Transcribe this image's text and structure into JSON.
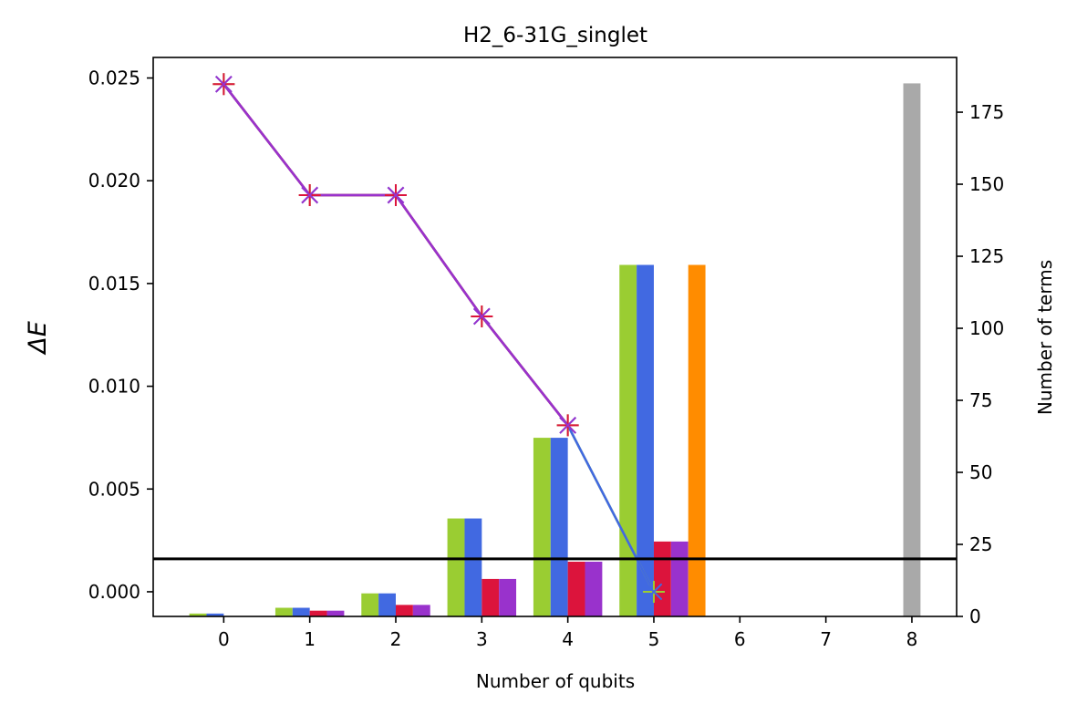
{
  "chart_data": {
    "type": "bar",
    "title": "H2_6-31G_singlet",
    "xlabel": "Number of qubits",
    "ylabel": "ΔE",
    "y2label": "Number of terms",
    "x_ticks": [
      "0",
      "1",
      "2",
      "3",
      "4",
      "5",
      "6",
      "7",
      "8"
    ],
    "ylim": [
      -0.0012,
      0.026
    ],
    "y_ticks": [
      "0.000",
      "0.005",
      "0.010",
      "0.015",
      "0.020",
      "0.025"
    ],
    "y_tick_values": [
      0,
      0.005,
      0.01,
      0.015,
      0.02,
      0.025
    ],
    "y2lim": [
      0,
      194
    ],
    "y2_ticks": [
      "0",
      "25",
      "50",
      "75",
      "100",
      "125",
      "150",
      "175"
    ],
    "y2_tick_values": [
      0,
      25,
      50,
      75,
      100,
      125,
      150,
      175
    ],
    "grid": false,
    "bar_series": [
      {
        "color": "#9acd32",
        "x": [
          0,
          1,
          2,
          3,
          4,
          5
        ],
        "values": [
          1,
          3,
          8,
          34,
          62,
          122
        ]
      },
      {
        "color": "#4169e1",
        "x": [
          0,
          1,
          2,
          3,
          4,
          5
        ],
        "values": [
          1,
          3,
          8,
          34,
          62,
          122
        ]
      },
      {
        "color": "#dc143c",
        "x": [
          1,
          2,
          3,
          4,
          5
        ],
        "values": [
          2,
          4,
          13,
          19,
          26
        ]
      },
      {
        "color": "#9932cc",
        "x": [
          1,
          2,
          3,
          4,
          5
        ],
        "values": [
          2,
          4,
          13,
          19,
          26
        ]
      },
      {
        "color": "#ff8c00",
        "x": [
          5
        ],
        "values": [
          122
        ],
        "offset": 0.5
      },
      {
        "color": "#a9a9a9",
        "x": [
          8
        ],
        "values": [
          185
        ],
        "offset": 0
      }
    ],
    "line_series": [
      {
        "color": "#9acd32",
        "marker": "plus",
        "x": [
          0,
          1,
          2,
          3,
          4,
          5
        ],
        "values": [
          0.0247,
          0.0193,
          0.0193,
          0.0134,
          0.0081,
          0.0
        ]
      },
      {
        "color": "#4169e1",
        "marker": "x",
        "x": [
          0,
          1,
          2,
          3,
          4,
          5
        ],
        "values": [
          0.0247,
          0.0193,
          0.0193,
          0.0134,
          0.0081,
          0.0
        ]
      },
      {
        "color": "#dc143c",
        "marker": "plus",
        "x": [
          0,
          1,
          2,
          3,
          4
        ],
        "values": [
          0.0247,
          0.0193,
          0.0193,
          0.0134,
          0.0081
        ]
      },
      {
        "color": "#9932cc",
        "marker": "x",
        "x": [
          0,
          1,
          2,
          3,
          4
        ],
        "values": [
          0.0247,
          0.0193,
          0.0193,
          0.0134,
          0.0081
        ]
      }
    ],
    "hline": {
      "value": 0.0016,
      "color": "#000000"
    }
  }
}
